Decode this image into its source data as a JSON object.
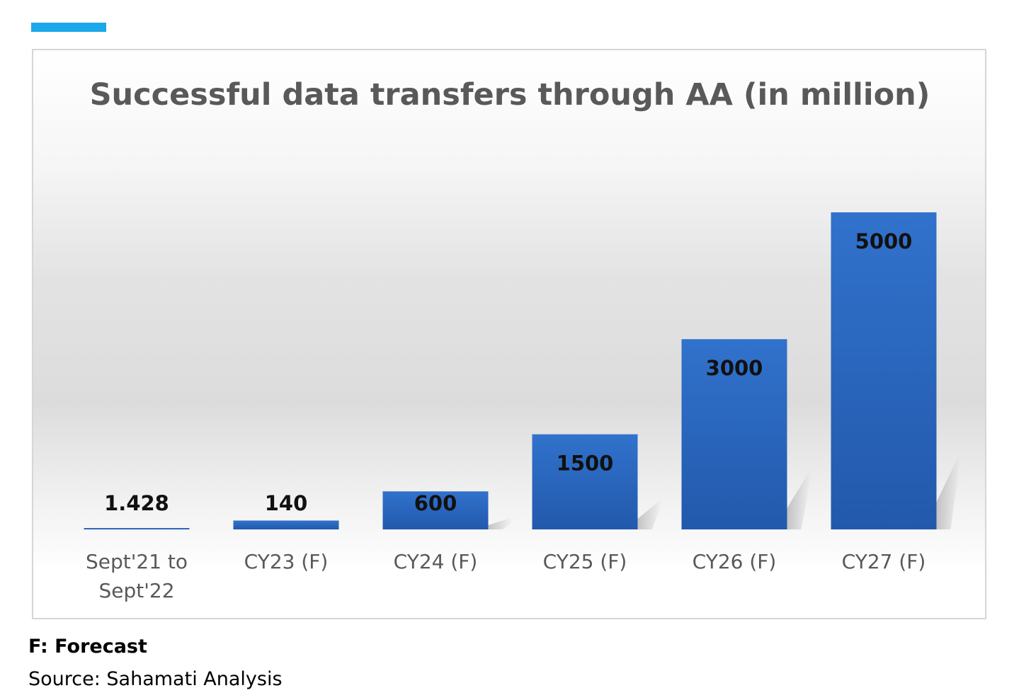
{
  "chart_data": {
    "type": "bar",
    "title": "Successful data transfers through AA (in million)",
    "categories": [
      [
        "Sept'21 to",
        "Sept'22"
      ],
      [
        "CY23 (F)"
      ],
      [
        "CY24 (F)"
      ],
      [
        "CY25 (F)"
      ],
      [
        "CY26 (F)"
      ],
      [
        "CY27 (F)"
      ]
    ],
    "values": [
      1.428,
      140,
      600,
      1500,
      3000,
      5000
    ],
    "data_labels": [
      "1.428",
      "140",
      "600",
      "1500",
      "3000",
      "5000"
    ],
    "xlabel": "",
    "ylabel": "",
    "ylim": [
      0,
      5000
    ],
    "grid": false,
    "legend": "none",
    "bar_color": "#2e6cc4",
    "bar_color_dark": "#2258ab"
  },
  "footnote": "F: Forecast",
  "source": "Source: Sahamati Analysis"
}
